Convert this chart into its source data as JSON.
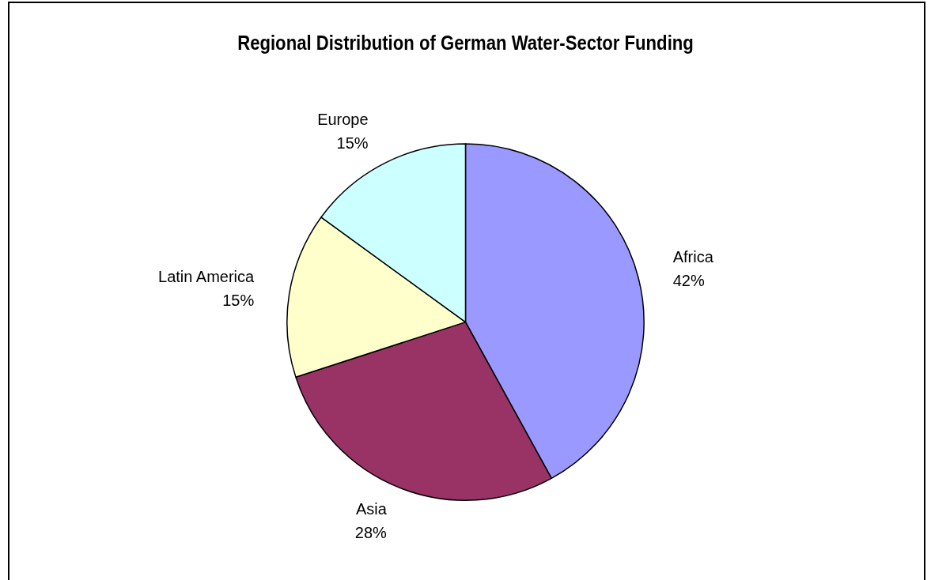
{
  "chart_data": {
    "type": "pie",
    "title": "Regional Distribution of German Water-Sector Funding",
    "categories": [
      "Africa",
      "Asia",
      "Latin America",
      "Europe"
    ],
    "values": [
      42,
      28,
      15,
      15
    ],
    "value_labels": [
      "42%",
      "28%",
      "15%",
      "15%"
    ],
    "colors": [
      "#9999ff",
      "#993366",
      "#ffffcc",
      "#ccffff"
    ],
    "legend": false
  }
}
